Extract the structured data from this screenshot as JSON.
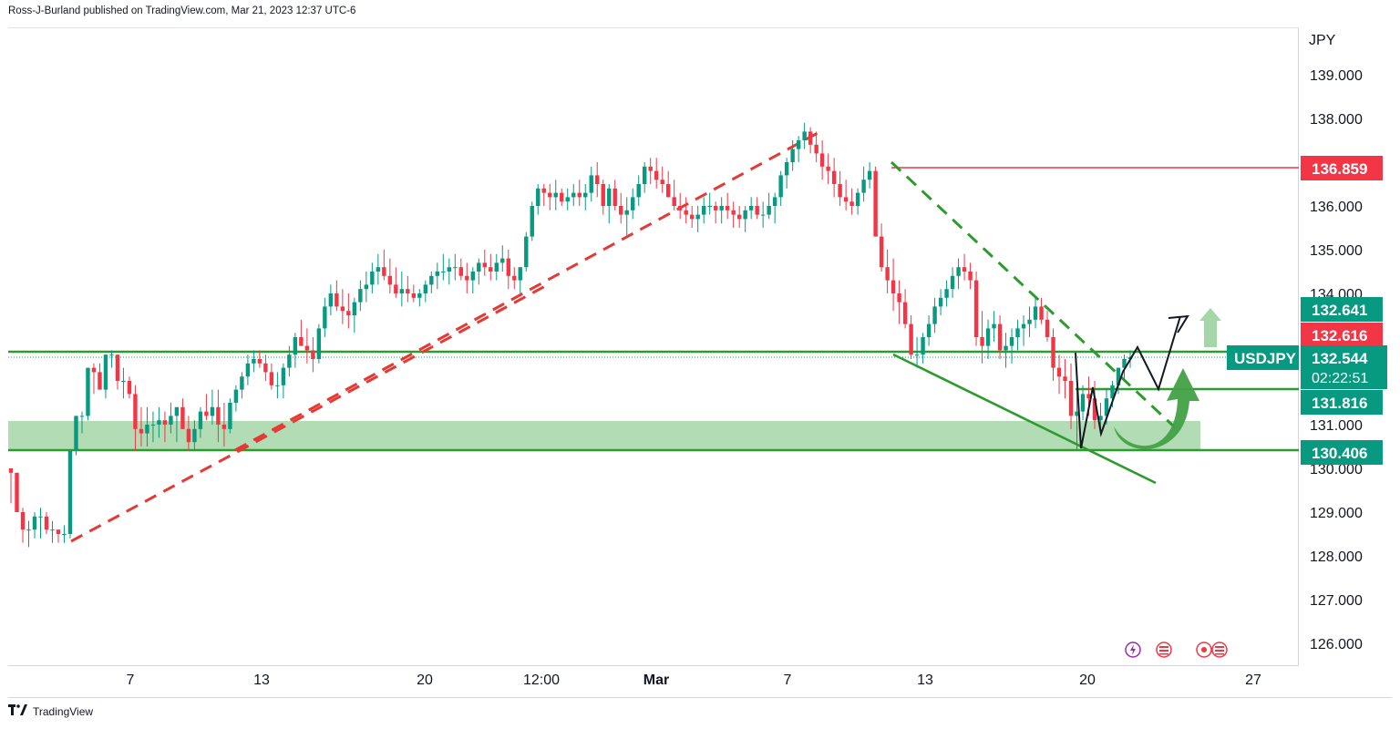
{
  "header": {
    "text": "Ross-J-Burland published on TradingView.com, Mar 21, 2023 12:37 UTC-6"
  },
  "footer": {
    "logo_icon": "tradingview-logo-icon",
    "brand": "TradingView"
  },
  "chart_data": {
    "type": "candlestick",
    "symbol": "USDJPY",
    "currency_label": "JPY",
    "y_ticks": [
      "139.000",
      "138.000",
      "136.000",
      "135.000",
      "134.000",
      "131.000",
      "130.000",
      "129.000",
      "128.000",
      "127.000",
      "126.000"
    ],
    "ylim": [
      125.7,
      140.3
    ],
    "x_ticks": [
      "7",
      "13",
      "20",
      "12:00",
      "Mar",
      "7",
      "13",
      "20",
      "27"
    ],
    "price_labels": [
      {
        "value": "136.859",
        "color": "#f23645"
      },
      {
        "value": "132.641",
        "color": "#089981"
      },
      {
        "value": "132.616",
        "color": "#f23645"
      },
      {
        "value": "132.544",
        "sub": "02:22:51",
        "color": "#089981",
        "symbol_tag": "USDJPY"
      },
      {
        "value": "131.816",
        "color": "#089981"
      },
      {
        "value": "130.406",
        "color": "#089981"
      }
    ],
    "levels": {
      "resistance_red": 136.859,
      "support_upper": 132.641,
      "support_mid": 131.816,
      "support_lower": 130.406,
      "zone": [
        130.406,
        131.1
      ]
    },
    "ohlc_approx": [
      [
        130.0,
        129.8,
        129.2
      ],
      [
        129.9,
        129.9,
        129.0
      ],
      [
        129.0,
        129.1,
        128.3
      ],
      [
        128.6,
        128.8,
        128.2
      ],
      [
        128.6,
        129.0,
        128.4
      ],
      [
        128.9,
        129.1,
        128.4
      ],
      [
        128.9,
        129.0,
        128.5
      ],
      [
        128.6,
        128.8,
        128.3
      ],
      [
        128.6,
        128.6,
        128.3
      ],
      [
        128.5,
        128.7,
        128.3
      ],
      [
        128.5,
        130.4,
        128.4
      ],
      [
        130.4,
        131.2,
        130.3
      ],
      [
        131.2,
        131.3,
        130.8
      ],
      [
        131.2,
        132.3,
        131.1
      ],
      [
        132.3,
        132.4,
        131.7
      ],
      [
        132.2,
        132.4,
        131.9
      ],
      [
        131.8,
        132.6,
        131.6
      ],
      [
        132.6,
        132.7,
        132.3
      ],
      [
        132.6,
        132.6,
        131.8
      ],
      [
        132.0,
        132.3,
        131.6
      ],
      [
        132.0,
        132.1,
        131.6
      ],
      [
        131.7,
        131.9,
        130.4
      ],
      [
        130.9,
        131.4,
        130.5
      ],
      [
        130.8,
        131.4,
        130.5
      ],
      [
        131.0,
        131.3,
        130.6
      ],
      [
        131.0,
        131.4,
        130.7
      ],
      [
        131.1,
        131.3,
        130.6
      ],
      [
        131.0,
        131.5,
        130.8
      ],
      [
        131.2,
        131.4,
        130.6
      ],
      [
        131.4,
        131.6,
        130.9
      ],
      [
        130.9,
        131.2,
        130.4
      ],
      [
        130.6,
        131.1,
        130.4
      ],
      [
        130.9,
        131.4,
        130.7
      ],
      [
        131.3,
        131.7,
        131.1
      ],
      [
        131.2,
        131.8,
        131.0
      ],
      [
        131.4,
        131.8,
        130.6
      ],
      [
        131.0,
        131.5,
        130.5
      ],
      [
        130.9,
        131.6,
        130.8
      ],
      [
        131.5,
        131.9,
        131.3
      ],
      [
        131.8,
        132.2,
        131.6
      ],
      [
        132.1,
        132.6,
        131.9
      ],
      [
        132.4,
        132.7,
        132.2
      ],
      [
        132.5,
        132.7,
        132.3
      ],
      [
        132.4,
        132.6,
        132.0
      ],
      [
        132.2,
        132.4,
        131.8
      ],
      [
        131.9,
        132.2,
        131.6
      ],
      [
        131.9,
        132.4,
        131.6
      ],
      [
        132.3,
        132.8,
        132.1
      ],
      [
        132.6,
        133.1,
        132.3
      ],
      [
        133.0,
        133.4,
        132.8
      ],
      [
        132.8,
        133.2,
        132.4
      ],
      [
        132.7,
        133.0,
        132.2
      ],
      [
        132.5,
        133.3,
        132.4
      ],
      [
        133.2,
        133.9,
        133.0
      ],
      [
        133.7,
        134.2,
        133.5
      ],
      [
        134.0,
        134.3,
        133.6
      ],
      [
        133.7,
        134.1,
        133.3
      ],
      [
        133.6,
        134.0,
        133.2
      ],
      [
        133.5,
        133.9,
        133.1
      ],
      [
        133.8,
        134.3,
        133.6
      ],
      [
        134.1,
        134.5,
        133.8
      ],
      [
        134.2,
        134.7,
        134.0
      ],
      [
        134.5,
        134.9,
        134.2
      ],
      [
        134.6,
        135.0,
        134.3
      ],
      [
        134.4,
        134.8,
        134.0
      ],
      [
        134.2,
        134.6,
        133.9
      ],
      [
        134.0,
        134.5,
        133.7
      ],
      [
        134.1,
        134.4,
        133.8
      ],
      [
        134.0,
        134.2,
        133.8
      ],
      [
        133.9,
        134.1,
        133.7
      ],
      [
        134.0,
        134.3,
        133.8
      ],
      [
        134.2,
        134.5,
        134.0
      ],
      [
        134.4,
        134.7,
        134.1
      ],
      [
        134.5,
        134.9,
        134.3
      ],
      [
        134.5,
        134.8,
        134.2
      ],
      [
        134.6,
        134.9,
        134.3
      ],
      [
        134.6,
        134.8,
        134.3
      ],
      [
        134.4,
        134.7,
        134.0
      ],
      [
        134.3,
        134.6,
        134.0
      ],
      [
        134.5,
        134.8,
        134.2
      ],
      [
        134.7,
        135.0,
        134.4
      ],
      [
        134.6,
        134.9,
        134.3
      ],
      [
        134.5,
        134.9,
        134.3
      ],
      [
        134.7,
        135.1,
        134.5
      ],
      [
        134.8,
        135.0,
        134.1
      ],
      [
        134.4,
        134.6,
        134.1
      ],
      [
        134.3,
        134.5,
        134.0
      ],
      [
        134.6,
        135.4,
        134.5
      ],
      [
        135.3,
        136.1,
        135.2
      ],
      [
        136.0,
        136.5,
        135.8
      ],
      [
        136.4,
        136.5,
        136.0
      ],
      [
        136.3,
        136.5,
        135.9
      ],
      [
        136.2,
        136.6,
        135.9
      ],
      [
        136.3,
        136.4,
        136.0
      ],
      [
        136.1,
        136.4,
        135.9
      ],
      [
        136.2,
        136.5,
        136.0
      ],
      [
        136.3,
        136.6,
        136.0
      ],
      [
        136.2,
        136.5,
        135.9
      ],
      [
        136.3,
        136.9,
        136.1
      ],
      [
        136.7,
        137.0,
        136.2
      ],
      [
        136.5,
        136.6,
        135.8
      ],
      [
        136.0,
        136.5,
        135.6
      ],
      [
        136.4,
        136.6,
        135.9
      ],
      [
        136.0,
        136.3,
        135.6
      ],
      [
        135.8,
        136.2,
        135.3
      ],
      [
        135.9,
        136.4,
        135.7
      ],
      [
        136.2,
        136.7,
        136.0
      ],
      [
        136.5,
        137.0,
        136.3
      ],
      [
        136.9,
        137.1,
        136.5
      ],
      [
        136.8,
        137.1,
        136.4
      ],
      [
        136.6,
        136.9,
        136.3
      ],
      [
        136.5,
        136.8,
        136.2
      ],
      [
        136.2,
        136.6,
        135.9
      ],
      [
        136.0,
        136.3,
        135.7
      ],
      [
        135.9,
        136.2,
        135.6
      ],
      [
        135.8,
        136.0,
        135.5
      ],
      [
        135.7,
        136.0,
        135.4
      ],
      [
        135.8,
        136.2,
        135.6
      ],
      [
        136.0,
        136.3,
        135.8
      ],
      [
        136.0,
        136.1,
        135.6
      ],
      [
        135.9,
        136.2,
        135.6
      ],
      [
        136.0,
        136.3,
        135.7
      ],
      [
        135.9,
        136.1,
        135.5
      ],
      [
        135.8,
        136.0,
        135.5
      ],
      [
        135.7,
        136.0,
        135.4
      ],
      [
        135.9,
        136.2,
        135.7
      ],
      [
        136.0,
        136.2,
        135.7
      ],
      [
        135.8,
        136.1,
        135.5
      ],
      [
        135.8,
        136.3,
        135.7
      ],
      [
        136.0,
        136.3,
        135.6
      ],
      [
        136.2,
        136.8,
        136.0
      ],
      [
        136.7,
        137.1,
        136.4
      ],
      [
        137.0,
        137.5,
        136.8
      ],
      [
        137.3,
        137.6,
        137.0
      ],
      [
        137.5,
        137.9,
        137.3
      ],
      [
        137.7,
        137.8,
        137.2
      ],
      [
        137.4,
        137.7,
        137.0
      ],
      [
        137.2,
        137.5,
        136.6
      ],
      [
        136.9,
        137.2,
        136.5
      ],
      [
        136.8,
        137.1,
        136.2
      ],
      [
        136.5,
        136.8,
        136.0
      ],
      [
        136.2,
        136.6,
        135.9
      ],
      [
        136.1,
        136.4,
        135.8
      ],
      [
        136.0,
        136.4,
        135.8
      ],
      [
        136.3,
        136.9,
        136.1
      ],
      [
        136.6,
        137.0,
        136.4
      ],
      [
        136.8,
        136.9,
        135.3
      ],
      [
        135.3,
        135.6,
        134.5
      ],
      [
        134.6,
        135.0,
        134.0
      ],
      [
        134.3,
        134.8,
        133.6
      ],
      [
        134.0,
        134.3,
        133.3
      ],
      [
        133.8,
        134.1,
        133.2
      ],
      [
        133.3,
        133.5,
        132.5
      ],
      [
        132.6,
        133.0,
        132.3
      ],
      [
        132.6,
        133.1,
        132.4
      ],
      [
        133.0,
        133.5,
        132.8
      ],
      [
        133.3,
        133.9,
        133.1
      ],
      [
        133.7,
        134.1,
        133.5
      ],
      [
        133.9,
        134.3,
        133.7
      ],
      [
        134.1,
        134.6,
        133.9
      ],
      [
        134.4,
        134.8,
        134.1
      ],
      [
        134.6,
        134.9,
        134.3
      ],
      [
        134.5,
        134.7,
        134.1
      ],
      [
        134.3,
        134.5,
        132.8
      ],
      [
        133.0,
        133.6,
        132.4
      ],
      [
        132.8,
        133.4,
        132.5
      ],
      [
        133.2,
        133.6,
        132.9
      ],
      [
        133.3,
        133.5,
        132.5
      ],
      [
        132.7,
        133.1,
        132.3
      ],
      [
        132.8,
        133.2,
        132.4
      ],
      [
        133.0,
        133.4,
        132.7
      ],
      [
        133.2,
        133.5,
        132.8
      ],
      [
        133.3,
        133.7,
        133.0
      ],
      [
        133.4,
        133.9,
        133.2
      ],
      [
        133.7,
        133.9,
        133.3
      ],
      [
        133.4,
        133.6,
        132.9
      ],
      [
        133.0,
        133.2,
        132.0
      ],
      [
        132.3,
        132.6,
        131.7
      ],
      [
        132.1,
        132.5,
        131.6
      ],
      [
        132.0,
        132.4,
        130.9
      ],
      [
        131.2,
        131.8,
        130.4
      ],
      [
        131.3,
        131.9,
        131.1
      ],
      [
        131.7,
        132.1,
        131.2
      ],
      [
        131.6,
        132.0,
        130.9
      ],
      [
        131.1,
        131.5,
        130.8
      ],
      [
        131.2,
        131.8,
        131.0
      ],
      [
        131.6,
        132.0,
        131.4
      ],
      [
        131.9,
        132.3,
        131.7
      ],
      [
        132.3,
        132.6,
        132.0
      ],
      [
        132.5,
        132.7,
        132.3
      ]
    ],
    "annotations": [
      "dashed red uptrend line",
      "dashed red uptrend line",
      "dashed green downtrend line",
      "dashed green channel line",
      "solid green support trendline",
      "zigzag projection path",
      "green curved bullish arrow",
      "light green up arrow"
    ]
  }
}
